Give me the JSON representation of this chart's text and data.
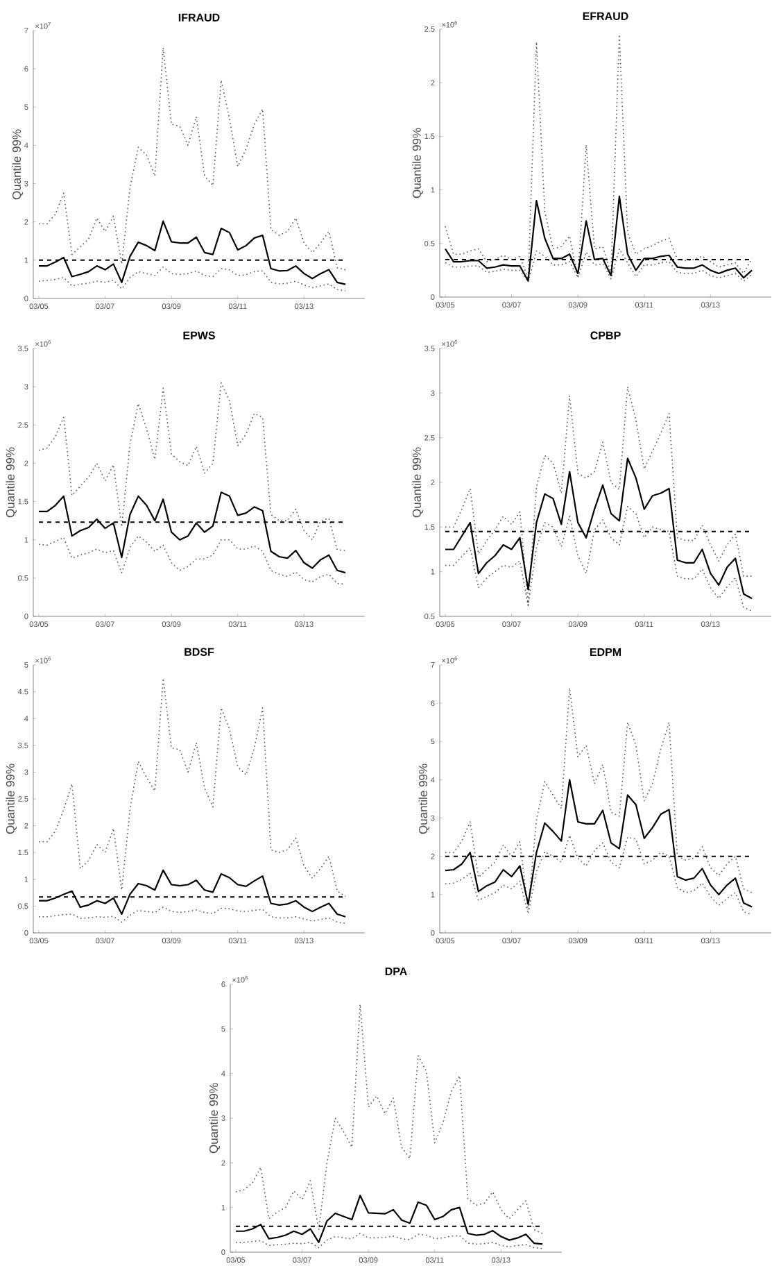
{
  "chart_data": [
    {
      "type": "line",
      "title": "IFRAUD",
      "ylabel": "Quantile 99%",
      "annotations": [
        "×10$^{7}$"
      ],
      "x": [
        "2005-03",
        "2005-06",
        "2005-09",
        "2005-12",
        "2006-03",
        "2006-06",
        "2006-09",
        "2006-12",
        "2007-03",
        "2007-06",
        "2007-09",
        "2007-12",
        "2008-03",
        "2008-06",
        "2008-09",
        "2008-12",
        "2009-03",
        "2009-06",
        "2009-09",
        "2009-12",
        "2010-03",
        "2010-06",
        "2010-09",
        "2010-12",
        "2011-03",
        "2011-06",
        "2011-09",
        "2011-12",
        "2012-03",
        "2012-06",
        "2012-09",
        "2012-12",
        "2013-03",
        "2013-06",
        "2013-09",
        "2013-12",
        "2014-03",
        "2014-06"
      ],
      "xlim": [
        "2005-01",
        "2015-01"
      ],
      "xticks": [
        {
          "value": "2005-03",
          "label": "03/05"
        },
        {
          "value": "2007-03",
          "label": "03/07"
        },
        {
          "value": "2009-03",
          "label": "03/09"
        },
        {
          "value": "2011-03",
          "label": "03/11"
        },
        {
          "value": "2013-03",
          "label": "03/13"
        }
      ],
      "ylim": [
        0,
        7
      ],
      "yticks": [
        0,
        1,
        2,
        3,
        4,
        5,
        6,
        7
      ],
      "series": [
        {
          "color": "#555555",
          "line_style": "dotted",
          "values": [
            1.95,
            1.95,
            2.2,
            2.75,
            1.15,
            1.35,
            1.55,
            2.1,
            1.75,
            2.15,
            0.9,
            2.9,
            3.95,
            3.75,
            3.2,
            6.55,
            4.55,
            4.5,
            4.0,
            4.75,
            3.2,
            2.95,
            5.7,
            4.7,
            3.45,
            3.9,
            4.55,
            4.95,
            1.8,
            1.65,
            1.75,
            2.1,
            1.45,
            1.2,
            1.45,
            1.75,
            0.8,
            0.75
          ]
        },
        {
          "color": "#000000",
          "line_style": "solid",
          "values": [
            0.85,
            0.85,
            0.95,
            1.07,
            0.57,
            0.63,
            0.7,
            0.85,
            0.75,
            0.9,
            0.42,
            1.1,
            1.47,
            1.38,
            1.25,
            2.02,
            1.48,
            1.45,
            1.45,
            1.6,
            1.2,
            1.15,
            1.83,
            1.72,
            1.27,
            1.38,
            1.58,
            1.65,
            0.78,
            0.72,
            0.73,
            0.85,
            0.65,
            0.52,
            0.65,
            0.75,
            0.42,
            0.37
          ]
        },
        {
          "color": "#555555",
          "line_style": "dotted",
          "values": [
            0.45,
            0.47,
            0.5,
            0.55,
            0.33,
            0.37,
            0.4,
            0.45,
            0.42,
            0.48,
            0.25,
            0.55,
            0.7,
            0.65,
            0.6,
            0.82,
            0.65,
            0.63,
            0.65,
            0.72,
            0.6,
            0.57,
            0.78,
            0.75,
            0.6,
            0.62,
            0.7,
            0.72,
            0.42,
            0.38,
            0.4,
            0.45,
            0.35,
            0.28,
            0.33,
            0.38,
            0.23,
            0.2
          ]
        }
      ],
      "ref_lines": [
        {
          "axis": "y",
          "value": 1.0,
          "color": "#000000",
          "line_style": "dashed"
        }
      ]
    },
    {
      "type": "line",
      "title": "EFRAUD",
      "ylabel": "Quantile 99%",
      "annotations": [
        "×10$^{6}$"
      ],
      "x": [
        "2005-03",
        "2005-06",
        "2005-09",
        "2005-12",
        "2006-03",
        "2006-06",
        "2006-09",
        "2006-12",
        "2007-03",
        "2007-06",
        "2007-09",
        "2007-12",
        "2008-03",
        "2008-06",
        "2008-09",
        "2008-12",
        "2009-03",
        "2009-06",
        "2009-09",
        "2009-12",
        "2010-03",
        "2010-06",
        "2010-09",
        "2010-12",
        "2011-03",
        "2011-06",
        "2011-09",
        "2011-12",
        "2012-03",
        "2012-06",
        "2012-09",
        "2012-12",
        "2013-03",
        "2013-06",
        "2013-09",
        "2013-12",
        "2014-03",
        "2014-06"
      ],
      "xlim": [
        "2005-01",
        "2015-01"
      ],
      "xticks": [
        {
          "value": "2005-03",
          "label": "03/05"
        },
        {
          "value": "2007-03",
          "label": "03/07"
        },
        {
          "value": "2009-03",
          "label": "03/09"
        },
        {
          "value": "2011-03",
          "label": "03/11"
        },
        {
          "value": "2013-03",
          "label": "03/13"
        }
      ],
      "ylim": [
        0,
        2.5
      ],
      "yticks": [
        0,
        0.5,
        1,
        1.5,
        2,
        2.5
      ],
      "series": [
        {
          "color": "#555555",
          "line_style": "dotted",
          "values": [
            0.66,
            0.4,
            0.4,
            0.43,
            0.45,
            0.33,
            0.35,
            0.39,
            0.35,
            0.38,
            0.17,
            2.38,
            0.8,
            0.45,
            0.47,
            0.57,
            0.18,
            1.42,
            0.45,
            0.47,
            0.22,
            2.45,
            0.6,
            0.4,
            0.45,
            0.48,
            0.52,
            0.55,
            0.35,
            0.34,
            0.35,
            0.38,
            0.33,
            0.28,
            0.3,
            0.32,
            0.22,
            0.36
          ]
        },
        {
          "color": "#000000",
          "line_style": "solid",
          "values": [
            0.45,
            0.33,
            0.33,
            0.34,
            0.34,
            0.27,
            0.28,
            0.3,
            0.29,
            0.29,
            0.15,
            0.9,
            0.55,
            0.36,
            0.36,
            0.4,
            0.22,
            0.71,
            0.35,
            0.36,
            0.2,
            0.94,
            0.4,
            0.25,
            0.36,
            0.36,
            0.38,
            0.39,
            0.28,
            0.27,
            0.27,
            0.3,
            0.25,
            0.22,
            0.25,
            0.27,
            0.18,
            0.25
          ]
        },
        {
          "color": "#555555",
          "line_style": "dotted",
          "values": [
            0.32,
            0.28,
            0.28,
            0.29,
            0.29,
            0.23,
            0.24,
            0.26,
            0.25,
            0.25,
            0.14,
            0.43,
            0.38,
            0.3,
            0.3,
            0.33,
            0.18,
            0.42,
            0.3,
            0.31,
            0.17,
            0.45,
            0.32,
            0.19,
            0.3,
            0.3,
            0.32,
            0.33,
            0.23,
            0.22,
            0.22,
            0.25,
            0.2,
            0.18,
            0.2,
            0.22,
            0.15,
            0.21
          ]
        }
      ],
      "ref_lines": [
        {
          "axis": "y",
          "value": 0.35,
          "color": "#000000",
          "line_style": "dashed"
        }
      ]
    },
    {
      "type": "line",
      "title": "EPWS",
      "ylabel": "Quantile 99%",
      "annotations": [
        "×10$^{6}$"
      ],
      "x": [
        "2005-03",
        "2005-06",
        "2005-09",
        "2005-12",
        "2006-03",
        "2006-06",
        "2006-09",
        "2006-12",
        "2007-03",
        "2007-06",
        "2007-09",
        "2007-12",
        "2008-03",
        "2008-06",
        "2008-09",
        "2008-12",
        "2009-03",
        "2009-06",
        "2009-09",
        "2009-12",
        "2010-03",
        "2010-06",
        "2010-09",
        "2010-12",
        "2011-03",
        "2011-06",
        "2011-09",
        "2011-12",
        "2012-03",
        "2012-06",
        "2012-09",
        "2012-12",
        "2013-03",
        "2013-06",
        "2013-09",
        "2013-12",
        "2014-03",
        "2014-06"
      ],
      "xlim": [
        "2005-01",
        "2015-01"
      ],
      "xticks": [
        {
          "value": "2005-03",
          "label": "03/05"
        },
        {
          "value": "2007-03",
          "label": "03/07"
        },
        {
          "value": "2009-03",
          "label": "03/09"
        },
        {
          "value": "2011-03",
          "label": "03/11"
        },
        {
          "value": "2013-03",
          "label": "03/13"
        }
      ],
      "ylim": [
        0,
        3.5
      ],
      "yticks": [
        0,
        0.5,
        1,
        1.5,
        2,
        2.5,
        3,
        3.5
      ],
      "series": [
        {
          "color": "#555555",
          "line_style": "dotted",
          "values": [
            2.17,
            2.2,
            2.35,
            2.6,
            1.58,
            1.7,
            1.82,
            2.0,
            1.77,
            1.98,
            1.17,
            2.25,
            2.78,
            2.45,
            2.05,
            2.98,
            2.12,
            2.02,
            1.97,
            2.22,
            1.87,
            2.0,
            3.05,
            2.82,
            2.23,
            2.38,
            2.65,
            2.6,
            1.33,
            1.25,
            1.25,
            1.4,
            1.12,
            1.0,
            1.25,
            1.28,
            0.87,
            0.86
          ]
        },
        {
          "color": "#000000",
          "line_style": "solid",
          "values": [
            1.37,
            1.37,
            1.45,
            1.57,
            1.05,
            1.12,
            1.16,
            1.27,
            1.15,
            1.22,
            0.77,
            1.33,
            1.57,
            1.45,
            1.25,
            1.53,
            1.1,
            1.0,
            1.05,
            1.22,
            1.1,
            1.18,
            1.62,
            1.57,
            1.32,
            1.35,
            1.43,
            1.38,
            0.85,
            0.78,
            0.76,
            0.86,
            0.7,
            0.63,
            0.74,
            0.8,
            0.6,
            0.57
          ]
        },
        {
          "color": "#555555",
          "line_style": "dotted",
          "values": [
            0.94,
            0.93,
            0.98,
            1.03,
            0.76,
            0.8,
            0.83,
            0.88,
            0.83,
            0.86,
            0.57,
            0.9,
            1.05,
            0.97,
            0.85,
            0.93,
            0.7,
            0.6,
            0.65,
            0.75,
            0.75,
            0.8,
            1.0,
            1.0,
            0.88,
            0.88,
            0.92,
            0.85,
            0.6,
            0.55,
            0.52,
            0.58,
            0.48,
            0.45,
            0.52,
            0.55,
            0.43,
            0.42
          ]
        }
      ],
      "ref_lines": [
        {
          "axis": "y",
          "value": 1.23,
          "color": "#000000",
          "line_style": "dashed"
        }
      ]
    },
    {
      "type": "line",
      "title": "CPBP",
      "ylabel": "Quantile 99%",
      "annotations": [
        "×10$^{6}$"
      ],
      "x": [
        "2005-03",
        "2005-06",
        "2005-09",
        "2005-12",
        "2006-03",
        "2006-06",
        "2006-09",
        "2006-12",
        "2007-03",
        "2007-06",
        "2007-09",
        "2007-12",
        "2008-03",
        "2008-06",
        "2008-09",
        "2008-12",
        "2009-03",
        "2009-06",
        "2009-09",
        "2009-12",
        "2010-03",
        "2010-06",
        "2010-09",
        "2010-12",
        "2011-03",
        "2011-06",
        "2011-09",
        "2011-12",
        "2012-03",
        "2012-06",
        "2012-09",
        "2012-12",
        "2013-03",
        "2013-06",
        "2013-09",
        "2013-12",
        "2014-03",
        "2014-06"
      ],
      "xlim": [
        "2005-01",
        "2015-01"
      ],
      "xticks": [
        {
          "value": "2005-03",
          "label": "03/05"
        },
        {
          "value": "2007-03",
          "label": "03/07"
        },
        {
          "value": "2009-03",
          "label": "03/09"
        },
        {
          "value": "2011-03",
          "label": "03/11"
        },
        {
          "value": "2013-03",
          "label": "03/13"
        }
      ],
      "ylim": [
        0.5,
        3.5
      ],
      "yticks": [
        0.5,
        1,
        1.5,
        2,
        2.5,
        3,
        3.5
      ],
      "series": [
        {
          "color": "#555555",
          "line_style": "dotted",
          "values": [
            1.5,
            1.5,
            1.7,
            1.93,
            1.2,
            1.35,
            1.47,
            1.62,
            1.53,
            1.67,
            0.63,
            1.95,
            2.3,
            2.22,
            1.88,
            2.97,
            2.1,
            2.05,
            2.12,
            2.45,
            2.0,
            1.92,
            3.07,
            2.7,
            2.15,
            2.35,
            2.55,
            2.77,
            1.38,
            1.35,
            1.35,
            1.52,
            1.3,
            1.12,
            1.3,
            1.42,
            0.95,
            0.95
          ]
        },
        {
          "color": "#000000",
          "line_style": "solid",
          "values": [
            1.25,
            1.25,
            1.4,
            1.55,
            0.98,
            1.1,
            1.18,
            1.3,
            1.25,
            1.38,
            0.8,
            1.55,
            1.87,
            1.82,
            1.53,
            2.12,
            1.55,
            1.38,
            1.7,
            1.97,
            1.65,
            1.57,
            2.27,
            2.05,
            1.7,
            1.85,
            1.88,
            1.93,
            1.13,
            1.1,
            1.1,
            1.25,
            0.98,
            0.85,
            1.05,
            1.15,
            0.75,
            0.7
          ]
        },
        {
          "color": "#555555",
          "line_style": "dotted",
          "values": [
            1.07,
            1.07,
            1.17,
            1.27,
            0.82,
            0.93,
            1.0,
            1.07,
            1.05,
            1.12,
            0.62,
            1.27,
            1.55,
            1.5,
            1.28,
            1.62,
            1.18,
            0.98,
            1.47,
            1.58,
            1.38,
            1.3,
            1.73,
            1.65,
            1.38,
            1.5,
            1.47,
            1.45,
            0.95,
            0.92,
            0.92,
            1.03,
            0.82,
            0.7,
            0.83,
            0.93,
            0.6,
            0.56
          ]
        }
      ],
      "ref_lines": [
        {
          "axis": "y",
          "value": 1.45,
          "color": "#000000",
          "line_style": "dashed"
        }
      ]
    },
    {
      "type": "line",
      "title": "BDSF",
      "ylabel": "Quantile 99%",
      "annotations": [
        "×10$^{6}$"
      ],
      "x": [
        "2005-03",
        "2005-06",
        "2005-09",
        "2005-12",
        "2006-03",
        "2006-06",
        "2006-09",
        "2006-12",
        "2007-03",
        "2007-06",
        "2007-09",
        "2007-12",
        "2008-03",
        "2008-06",
        "2008-09",
        "2008-12",
        "2009-03",
        "2009-06",
        "2009-09",
        "2009-12",
        "2010-03",
        "2010-06",
        "2010-09",
        "2010-12",
        "2011-03",
        "2011-06",
        "2011-09",
        "2011-12",
        "2012-03",
        "2012-06",
        "2012-09",
        "2012-12",
        "2013-03",
        "2013-06",
        "2013-09",
        "2013-12",
        "2014-03",
        "2014-06"
      ],
      "xlim": [
        "2005-01",
        "2015-01"
      ],
      "xticks": [
        {
          "value": "2005-03",
          "label": "03/05"
        },
        {
          "value": "2007-03",
          "label": "03/07"
        },
        {
          "value": "2009-03",
          "label": "03/09"
        },
        {
          "value": "2011-03",
          "label": "03/11"
        },
        {
          "value": "2013-03",
          "label": "03/13"
        }
      ],
      "ylim": [
        0,
        5
      ],
      "yticks": [
        0,
        0.5,
        1,
        1.5,
        2,
        2.5,
        3,
        3.5,
        4,
        4.5,
        5
      ],
      "series": [
        {
          "color": "#555555",
          "line_style": "dotted",
          "values": [
            1.7,
            1.7,
            1.9,
            2.3,
            2.78,
            1.2,
            1.35,
            1.65,
            1.5,
            1.95,
            0.8,
            2.3,
            3.2,
            2.9,
            2.65,
            4.75,
            3.45,
            3.42,
            3.0,
            3.55,
            2.7,
            2.35,
            4.2,
            3.8,
            3.1,
            2.95,
            3.45,
            4.2,
            1.55,
            1.5,
            1.55,
            1.77,
            1.25,
            1.02,
            1.2,
            1.43,
            0.78,
            0.68
          ]
        },
        {
          "color": "#000000",
          "line_style": "solid",
          "values": [
            0.6,
            0.6,
            0.65,
            0.72,
            0.78,
            0.48,
            0.52,
            0.6,
            0.55,
            0.65,
            0.35,
            0.72,
            0.92,
            0.88,
            0.8,
            1.17,
            0.9,
            0.88,
            0.9,
            0.98,
            0.8,
            0.76,
            1.1,
            1.03,
            0.9,
            0.87,
            0.97,
            1.06,
            0.55,
            0.52,
            0.54,
            0.6,
            0.48,
            0.4,
            0.48,
            0.55,
            0.35,
            0.3
          ]
        },
        {
          "color": "#555555",
          "line_style": "dotted",
          "values": [
            0.3,
            0.3,
            0.32,
            0.34,
            0.35,
            0.27,
            0.28,
            0.3,
            0.29,
            0.31,
            0.2,
            0.33,
            0.42,
            0.4,
            0.38,
            0.48,
            0.4,
            0.38,
            0.4,
            0.43,
            0.38,
            0.36,
            0.46,
            0.45,
            0.41,
            0.4,
            0.42,
            0.44,
            0.3,
            0.28,
            0.28,
            0.3,
            0.26,
            0.22,
            0.25,
            0.28,
            0.2,
            0.18
          ]
        }
      ],
      "ref_lines": [
        {
          "axis": "y",
          "value": 0.67,
          "color": "#000000",
          "line_style": "dashed"
        }
      ]
    },
    {
      "type": "line",
      "title": "EDPM",
      "ylabel": "Quantile 99%",
      "annotations": [
        "×10$^{6}$"
      ],
      "x": [
        "2005-03",
        "2005-06",
        "2005-09",
        "2005-12",
        "2006-03",
        "2006-06",
        "2006-09",
        "2006-12",
        "2007-03",
        "2007-06",
        "2007-09",
        "2007-12",
        "2008-03",
        "2008-06",
        "2008-09",
        "2008-12",
        "2009-03",
        "2009-06",
        "2009-09",
        "2009-12",
        "2010-03",
        "2010-06",
        "2010-09",
        "2010-12",
        "2011-03",
        "2011-06",
        "2011-09",
        "2011-12",
        "2012-03",
        "2012-06",
        "2012-09",
        "2012-12",
        "2013-03",
        "2013-06",
        "2013-09",
        "2013-12",
        "2014-03",
        "2014-06"
      ],
      "xlim": [
        "2005-01",
        "2015-01"
      ],
      "xticks": [
        {
          "value": "2005-03",
          "label": "03/05"
        },
        {
          "value": "2007-03",
          "label": "03/07"
        },
        {
          "value": "2009-03",
          "label": "03/09"
        },
        {
          "value": "2011-03",
          "label": "03/11"
        },
        {
          "value": "2013-03",
          "label": "03/13"
        }
      ],
      "ylim": [
        0,
        7
      ],
      "yticks": [
        0,
        1,
        2,
        3,
        4,
        5,
        6,
        7
      ],
      "series": [
        {
          "color": "#555555",
          "line_style": "dotted",
          "values": [
            2.1,
            2.1,
            2.4,
            2.9,
            1.45,
            1.65,
            1.85,
            2.3,
            2.0,
            2.38,
            0.6,
            2.95,
            3.95,
            3.6,
            3.25,
            6.4,
            4.6,
            4.9,
            3.9,
            4.4,
            3.15,
            3.05,
            5.5,
            4.9,
            3.45,
            3.9,
            4.8,
            5.5,
            2.0,
            1.9,
            1.95,
            2.25,
            1.7,
            1.5,
            1.8,
            2.0,
            1.15,
            1.05
          ]
        },
        {
          "color": "#000000",
          "line_style": "solid",
          "values": [
            1.63,
            1.65,
            1.8,
            2.1,
            1.08,
            1.23,
            1.33,
            1.65,
            1.47,
            1.75,
            0.75,
            2.1,
            2.87,
            2.65,
            2.4,
            4.0,
            2.9,
            2.85,
            2.85,
            3.2,
            2.35,
            2.2,
            3.6,
            3.35,
            2.47,
            2.75,
            3.1,
            3.22,
            1.47,
            1.38,
            1.43,
            1.68,
            1.25,
            1.0,
            1.25,
            1.43,
            0.78,
            0.68
          ]
        },
        {
          "color": "#555555",
          "line_style": "dotted",
          "values": [
            1.28,
            1.3,
            1.4,
            1.55,
            0.85,
            0.95,
            1.05,
            1.25,
            1.15,
            1.35,
            0.5,
            1.6,
            2.12,
            2.0,
            1.85,
            2.55,
            1.95,
            1.75,
            2.15,
            2.35,
            1.85,
            1.7,
            2.5,
            2.45,
            1.8,
            1.9,
            2.1,
            2.0,
            1.18,
            1.05,
            1.1,
            1.3,
            0.95,
            0.72,
            0.9,
            1.05,
            0.55,
            0.48
          ]
        }
      ],
      "ref_lines": [
        {
          "axis": "y",
          "value": 2.0,
          "color": "#000000",
          "line_style": "dashed"
        }
      ]
    },
    {
      "type": "line",
      "title": "DPA",
      "ylabel": "Quantile 99%",
      "annotations": [
        "×10$^{6}$"
      ],
      "x": [
        "2005-03",
        "2005-06",
        "2005-09",
        "2005-12",
        "2006-03",
        "2006-06",
        "2006-09",
        "2006-12",
        "2007-03",
        "2007-06",
        "2007-09",
        "2007-12",
        "2008-03",
        "2008-06",
        "2008-09",
        "2008-12",
        "2009-03",
        "2009-06",
        "2009-09",
        "2009-12",
        "2010-03",
        "2010-06",
        "2010-09",
        "2010-12",
        "2011-03",
        "2011-06",
        "2011-09",
        "2011-12",
        "2012-03",
        "2012-06",
        "2012-09",
        "2012-12",
        "2013-03",
        "2013-06",
        "2013-09",
        "2013-12",
        "2014-03",
        "2014-06"
      ],
      "xlim": [
        "2005-01",
        "2015-01"
      ],
      "xticks": [
        {
          "value": "2005-03",
          "label": "03/05"
        },
        {
          "value": "2007-03",
          "label": "03/07"
        },
        {
          "value": "2009-03",
          "label": "03/09"
        },
        {
          "value": "2011-03",
          "label": "03/11"
        },
        {
          "value": "2013-03",
          "label": "03/13"
        }
      ],
      "ylim": [
        0,
        6
      ],
      "yticks": [
        0,
        1,
        2,
        3,
        4,
        5,
        6
      ],
      "series": [
        {
          "color": "#555555",
          "line_style": "dotted",
          "values": [
            1.35,
            1.4,
            1.55,
            1.9,
            0.75,
            0.9,
            1.0,
            1.37,
            1.18,
            1.6,
            0.5,
            2.0,
            3.0,
            2.7,
            2.35,
            5.55,
            3.25,
            3.5,
            3.1,
            3.45,
            2.35,
            2.1,
            4.4,
            4.05,
            2.45,
            2.9,
            3.6,
            3.95,
            1.2,
            1.05,
            1.1,
            1.35,
            0.95,
            0.75,
            0.95,
            1.15,
            0.5,
            0.42
          ]
        },
        {
          "color": "#000000",
          "line_style": "solid",
          "values": [
            0.47,
            0.47,
            0.52,
            0.62,
            0.3,
            0.33,
            0.38,
            0.47,
            0.4,
            0.52,
            0.22,
            0.7,
            0.87,
            0.8,
            0.73,
            1.27,
            0.88,
            0.87,
            0.86,
            0.95,
            0.72,
            0.65,
            1.12,
            1.05,
            0.73,
            0.8,
            0.95,
            1.0,
            0.42,
            0.38,
            0.4,
            0.48,
            0.35,
            0.27,
            0.32,
            0.4,
            0.2,
            0.18
          ]
        },
        {
          "color": "#555555",
          "line_style": "dotted",
          "values": [
            0.22,
            0.22,
            0.24,
            0.26,
            0.15,
            0.17,
            0.18,
            0.2,
            0.19,
            0.22,
            0.1,
            0.27,
            0.35,
            0.32,
            0.3,
            0.42,
            0.32,
            0.32,
            0.33,
            0.36,
            0.3,
            0.28,
            0.4,
            0.38,
            0.3,
            0.32,
            0.36,
            0.37,
            0.2,
            0.18,
            0.19,
            0.22,
            0.15,
            0.12,
            0.15,
            0.17,
            0.1,
            0.08
          ]
        }
      ],
      "ref_lines": [
        {
          "axis": "y",
          "value": 0.58,
          "color": "#000000",
          "line_style": "dashed"
        }
      ]
    }
  ]
}
